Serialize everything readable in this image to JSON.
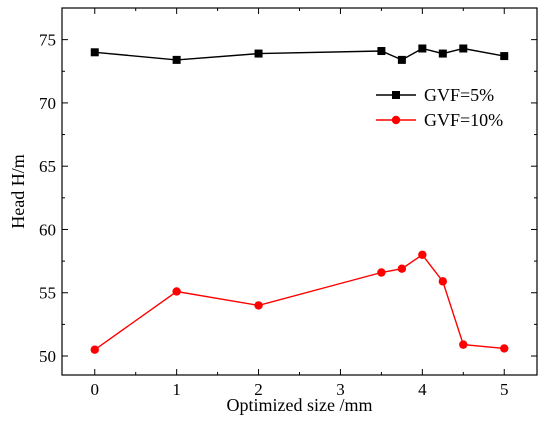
{
  "chart_data": {
    "type": "line",
    "title": "",
    "xlabel": "Optimized size    /mm",
    "ylabel": "Head    H/m",
    "xlim": [
      -0.4,
      5.4
    ],
    "ylim": [
      48.5,
      77.5
    ],
    "xticks": [
      0,
      1,
      2,
      3,
      4,
      5
    ],
    "yticks": [
      50,
      55,
      60,
      65,
      70,
      75
    ],
    "grid": false,
    "legend_position": "upper-right",
    "series": [
      {
        "name": "GVF=5%",
        "color": "#000000",
        "marker": "square",
        "x": [
          0,
          1,
          2,
          3.5,
          3.75,
          4,
          4.25,
          4.5,
          5
        ],
        "y": [
          74.0,
          73.4,
          73.9,
          74.1,
          73.4,
          74.3,
          73.9,
          74.3,
          73.7
        ]
      },
      {
        "name": "GVF=10%",
        "color": "#ff0000",
        "marker": "circle",
        "x": [
          0,
          1,
          2,
          3.5,
          3.75,
          4,
          4.25,
          4.5,
          5
        ],
        "y": [
          50.5,
          55.1,
          54.0,
          56.6,
          56.9,
          58.0,
          55.9,
          50.9,
          50.6
        ]
      }
    ]
  }
}
